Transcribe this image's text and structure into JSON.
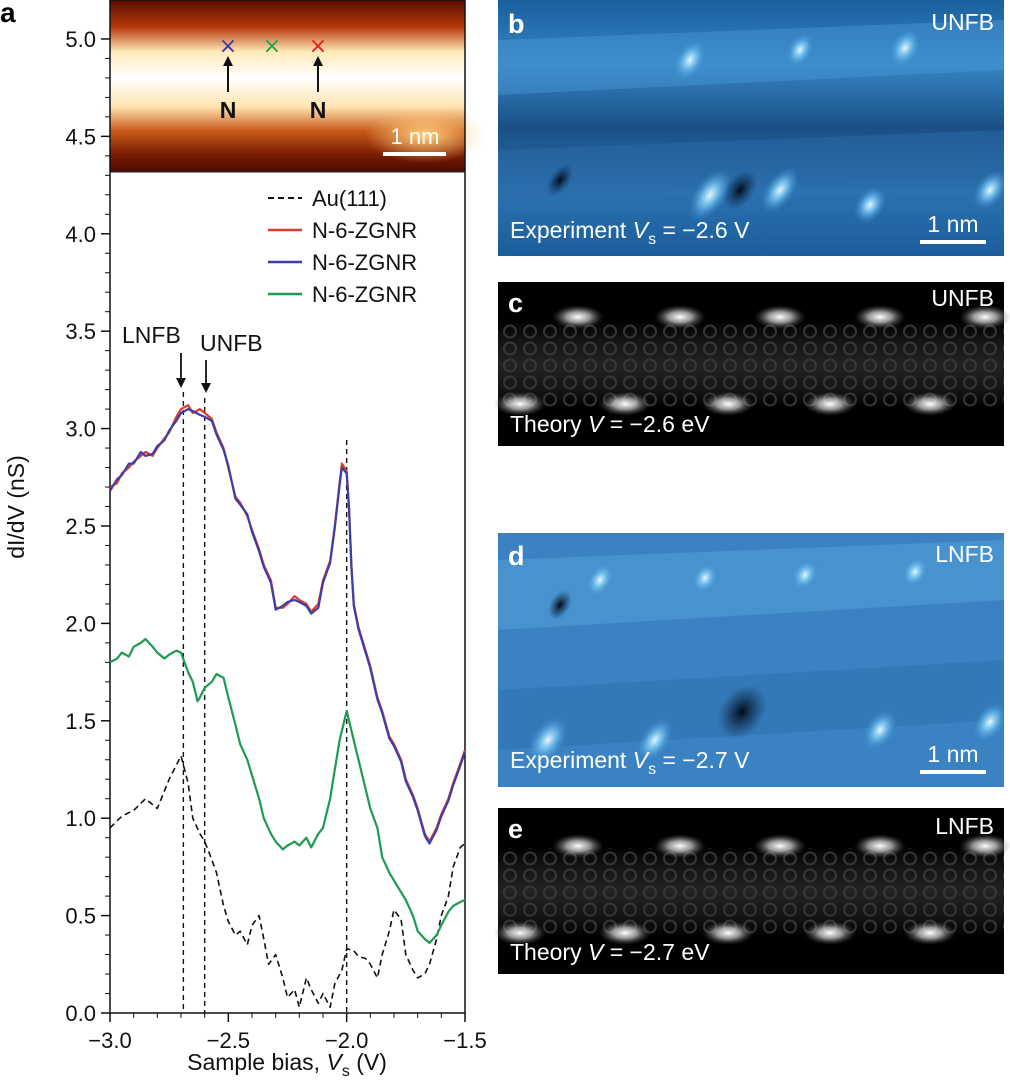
{
  "panel_a": {
    "letter": "a",
    "inset": {
      "markers": [
        {
          "symbol": "×",
          "color": "#3a3aa8"
        },
        {
          "symbol": "×",
          "color": "#1aa64a"
        },
        {
          "symbol": "×",
          "color": "#e02020"
        }
      ],
      "site_label": "N",
      "scalebar_label": "1 nm"
    },
    "annotations": {
      "lnfb": "LNFB",
      "unfb": "UNFB"
    },
    "legend": [
      {
        "label": "Au(111)",
        "color": "#111111",
        "dash": true
      },
      {
        "label": "N-6-ZGNR",
        "color": "#e03a2e",
        "dash": false
      },
      {
        "label": "N-6-ZGNR",
        "color": "#3b3fa8",
        "dash": false
      },
      {
        "label": "N-6-ZGNR",
        "color": "#1e9a52",
        "dash": false
      }
    ],
    "axis": {
      "ylabel_main": "dI/dV",
      "ylabel_unit": " (nS)",
      "xlabel_main": "Sample bias, ",
      "xlabel_var": "V",
      "xlabel_sub": "s",
      "xlabel_unit": " (V)"
    }
  },
  "chart_data": {
    "type": "line",
    "title": "",
    "xlabel": "Sample bias, Vs (V)",
    "ylabel": "dI/dV (nS)",
    "xlim": [
      -3.0,
      -1.5
    ],
    "ylim": [
      0.0,
      5.2
    ],
    "xticks": [
      -3.0,
      -2.5,
      -2.0,
      -1.5
    ],
    "xtick_labels": [
      "−3.0",
      "−2.5",
      "−2.0",
      "−1.5"
    ],
    "yticks": [
      0.0,
      0.5,
      1.0,
      1.5,
      2.0,
      2.5,
      3.0,
      3.5,
      4.0,
      4.5,
      5.0
    ],
    "ytick_labels": [
      "0.0",
      "0.5",
      "1.0",
      "1.5",
      "2.0",
      "2.5",
      "3.0",
      "3.5",
      "4.0",
      "4.5",
      "5.0"
    ],
    "vlines": [
      -2.69,
      -2.6,
      -2.0
    ],
    "series": [
      {
        "name": "Au(111)",
        "color": "#111111",
        "dash": true,
        "x": [
          -3.0,
          -2.95,
          -2.9,
          -2.85,
          -2.8,
          -2.75,
          -2.7,
          -2.67,
          -2.65,
          -2.62,
          -2.6,
          -2.58,
          -2.55,
          -2.52,
          -2.5,
          -2.47,
          -2.45,
          -2.42,
          -2.4,
          -2.37,
          -2.35,
          -2.33,
          -2.3,
          -2.27,
          -2.25,
          -2.22,
          -2.2,
          -2.17,
          -2.15,
          -2.12,
          -2.1,
          -2.07,
          -2.05,
          -2.02,
          -2.0,
          -1.97,
          -1.95,
          -1.92,
          -1.9,
          -1.87,
          -1.85,
          -1.82,
          -1.8,
          -1.77,
          -1.75,
          -1.72,
          -1.7,
          -1.67,
          -1.65,
          -1.62,
          -1.6,
          -1.57,
          -1.55,
          -1.52,
          -1.5
        ],
        "y": [
          0.95,
          1.01,
          1.04,
          1.1,
          1.05,
          1.2,
          1.32,
          1.18,
          1.0,
          0.92,
          0.88,
          0.82,
          0.72,
          0.55,
          0.47,
          0.4,
          0.42,
          0.35,
          0.45,
          0.5,
          0.38,
          0.25,
          0.3,
          0.18,
          0.08,
          0.12,
          0.03,
          0.18,
          0.12,
          0.05,
          0.1,
          0.03,
          0.15,
          0.22,
          0.33,
          0.32,
          0.29,
          0.28,
          0.25,
          0.18,
          0.3,
          0.42,
          0.53,
          0.48,
          0.3,
          0.22,
          0.18,
          0.2,
          0.25,
          0.38,
          0.5,
          0.6,
          0.75,
          0.85,
          0.87
        ]
      },
      {
        "name": "N-6-ZGNR",
        "color": "#e03a2e",
        "dash": false,
        "x": [
          -3.0,
          -2.97,
          -2.95,
          -2.92,
          -2.9,
          -2.87,
          -2.85,
          -2.82,
          -2.8,
          -2.77,
          -2.75,
          -2.72,
          -2.7,
          -2.67,
          -2.65,
          -2.62,
          -2.6,
          -2.57,
          -2.55,
          -2.52,
          -2.5,
          -2.47,
          -2.45,
          -2.42,
          -2.4,
          -2.37,
          -2.35,
          -2.32,
          -2.3,
          -2.27,
          -2.25,
          -2.22,
          -2.2,
          -2.17,
          -2.15,
          -2.12,
          -2.1,
          -2.07,
          -2.05,
          -2.03,
          -2.02,
          -2.0,
          -1.99,
          -1.98,
          -1.97,
          -1.95,
          -1.92,
          -1.9,
          -1.87,
          -1.85,
          -1.82,
          -1.8,
          -1.77,
          -1.75,
          -1.72,
          -1.7,
          -1.67,
          -1.65,
          -1.62,
          -1.6,
          -1.57,
          -1.55,
          -1.52,
          -1.5
        ],
        "y": [
          2.7,
          2.72,
          2.77,
          2.8,
          2.83,
          2.86,
          2.88,
          2.86,
          2.9,
          2.95,
          2.98,
          3.06,
          3.1,
          3.12,
          3.08,
          3.1,
          3.08,
          3.05,
          2.98,
          2.9,
          2.8,
          2.65,
          2.62,
          2.55,
          2.48,
          2.38,
          2.3,
          2.22,
          2.08,
          2.08,
          2.1,
          2.14,
          2.12,
          2.1,
          2.06,
          2.1,
          2.22,
          2.32,
          2.5,
          2.72,
          2.82,
          2.78,
          2.6,
          2.3,
          2.1,
          1.98,
          1.86,
          1.78,
          1.62,
          1.55,
          1.42,
          1.38,
          1.3,
          1.2,
          1.12,
          1.05,
          0.92,
          0.88,
          0.95,
          1.02,
          1.1,
          1.18,
          1.28,
          1.35
        ]
      },
      {
        "name": "N-6-ZGNR",
        "color": "#3b3fa8",
        "dash": false,
        "x": [
          -3.0,
          -2.97,
          -2.95,
          -2.92,
          -2.9,
          -2.87,
          -2.85,
          -2.82,
          -2.8,
          -2.77,
          -2.75,
          -2.72,
          -2.7,
          -2.67,
          -2.65,
          -2.62,
          -2.6,
          -2.57,
          -2.55,
          -2.52,
          -2.5,
          -2.47,
          -2.45,
          -2.42,
          -2.4,
          -2.37,
          -2.35,
          -2.32,
          -2.3,
          -2.27,
          -2.25,
          -2.22,
          -2.2,
          -2.17,
          -2.15,
          -2.12,
          -2.1,
          -2.07,
          -2.05,
          -2.03,
          -2.02,
          -2.0,
          -1.99,
          -1.98,
          -1.97,
          -1.95,
          -1.92,
          -1.9,
          -1.87,
          -1.85,
          -1.82,
          -1.8,
          -1.77,
          -1.75,
          -1.72,
          -1.7,
          -1.67,
          -1.65,
          -1.62,
          -1.6,
          -1.57,
          -1.55,
          -1.52,
          -1.5
        ],
        "y": [
          2.68,
          2.74,
          2.76,
          2.82,
          2.82,
          2.88,
          2.86,
          2.87,
          2.91,
          2.94,
          2.99,
          3.04,
          3.08,
          3.1,
          3.09,
          3.07,
          3.06,
          3.04,
          2.97,
          2.89,
          2.81,
          2.64,
          2.61,
          2.56,
          2.47,
          2.37,
          2.29,
          2.21,
          2.07,
          2.09,
          2.11,
          2.12,
          2.11,
          2.09,
          2.05,
          2.08,
          2.21,
          2.31,
          2.49,
          2.71,
          2.8,
          2.77,
          2.59,
          2.29,
          2.09,
          1.97,
          1.85,
          1.77,
          1.61,
          1.54,
          1.41,
          1.37,
          1.29,
          1.19,
          1.11,
          1.04,
          0.91,
          0.87,
          0.94,
          1.01,
          1.09,
          1.17,
          1.27,
          1.34
        ]
      },
      {
        "name": "N-6-ZGNR",
        "color": "#1e9a52",
        "dash": false,
        "x": [
          -3.0,
          -2.97,
          -2.95,
          -2.92,
          -2.9,
          -2.87,
          -2.85,
          -2.82,
          -2.8,
          -2.77,
          -2.75,
          -2.72,
          -2.7,
          -2.67,
          -2.65,
          -2.63,
          -2.62,
          -2.6,
          -2.57,
          -2.55,
          -2.52,
          -2.5,
          -2.47,
          -2.45,
          -2.42,
          -2.4,
          -2.37,
          -2.35,
          -2.32,
          -2.3,
          -2.27,
          -2.25,
          -2.22,
          -2.2,
          -2.17,
          -2.15,
          -2.12,
          -2.1,
          -2.07,
          -2.05,
          -2.03,
          -2.0,
          -1.98,
          -1.95,
          -1.92,
          -1.9,
          -1.87,
          -1.85,
          -1.82,
          -1.8,
          -1.77,
          -1.75,
          -1.72,
          -1.7,
          -1.67,
          -1.65,
          -1.62,
          -1.6,
          -1.57,
          -1.55,
          -1.52,
          -1.5
        ],
        "y": [
          1.8,
          1.82,
          1.85,
          1.83,
          1.88,
          1.9,
          1.92,
          1.88,
          1.85,
          1.82,
          1.84,
          1.86,
          1.85,
          1.75,
          1.7,
          1.6,
          1.62,
          1.67,
          1.7,
          1.74,
          1.72,
          1.62,
          1.48,
          1.38,
          1.3,
          1.22,
          1.1,
          1.0,
          0.92,
          0.88,
          0.84,
          0.86,
          0.88,
          0.86,
          0.9,
          0.85,
          0.92,
          0.95,
          1.1,
          1.25,
          1.4,
          1.55,
          1.45,
          1.3,
          1.15,
          1.05,
          0.95,
          0.8,
          0.72,
          0.68,
          0.62,
          0.58,
          0.5,
          0.42,
          0.38,
          0.36,
          0.4,
          0.45,
          0.52,
          0.55,
          0.57,
          0.58
        ]
      }
    ]
  },
  "panels": [
    {
      "letter": "b",
      "tag": "UNFB",
      "caption_pre": "Experiment ",
      "caption_var": "V",
      "caption_sub": "s",
      "caption_post": " = −2.6 V",
      "scalebar": "1 nm"
    },
    {
      "letter": "c",
      "tag": "UNFB",
      "caption_pre": "Theory ",
      "caption_var": "V",
      "caption_sub": "",
      "caption_post": " = −2.6 eV",
      "scalebar": ""
    },
    {
      "letter": "d",
      "tag": "LNFB",
      "caption_pre": "Experiment ",
      "caption_var": "V",
      "caption_sub": "s",
      "caption_post": " = −2.7 V",
      "scalebar": "1 nm"
    },
    {
      "letter": "e",
      "tag": "LNFB",
      "caption_pre": "Theory ",
      "caption_var": "V",
      "caption_sub": "",
      "caption_post": " = −2.7 eV",
      "scalebar": ""
    }
  ]
}
